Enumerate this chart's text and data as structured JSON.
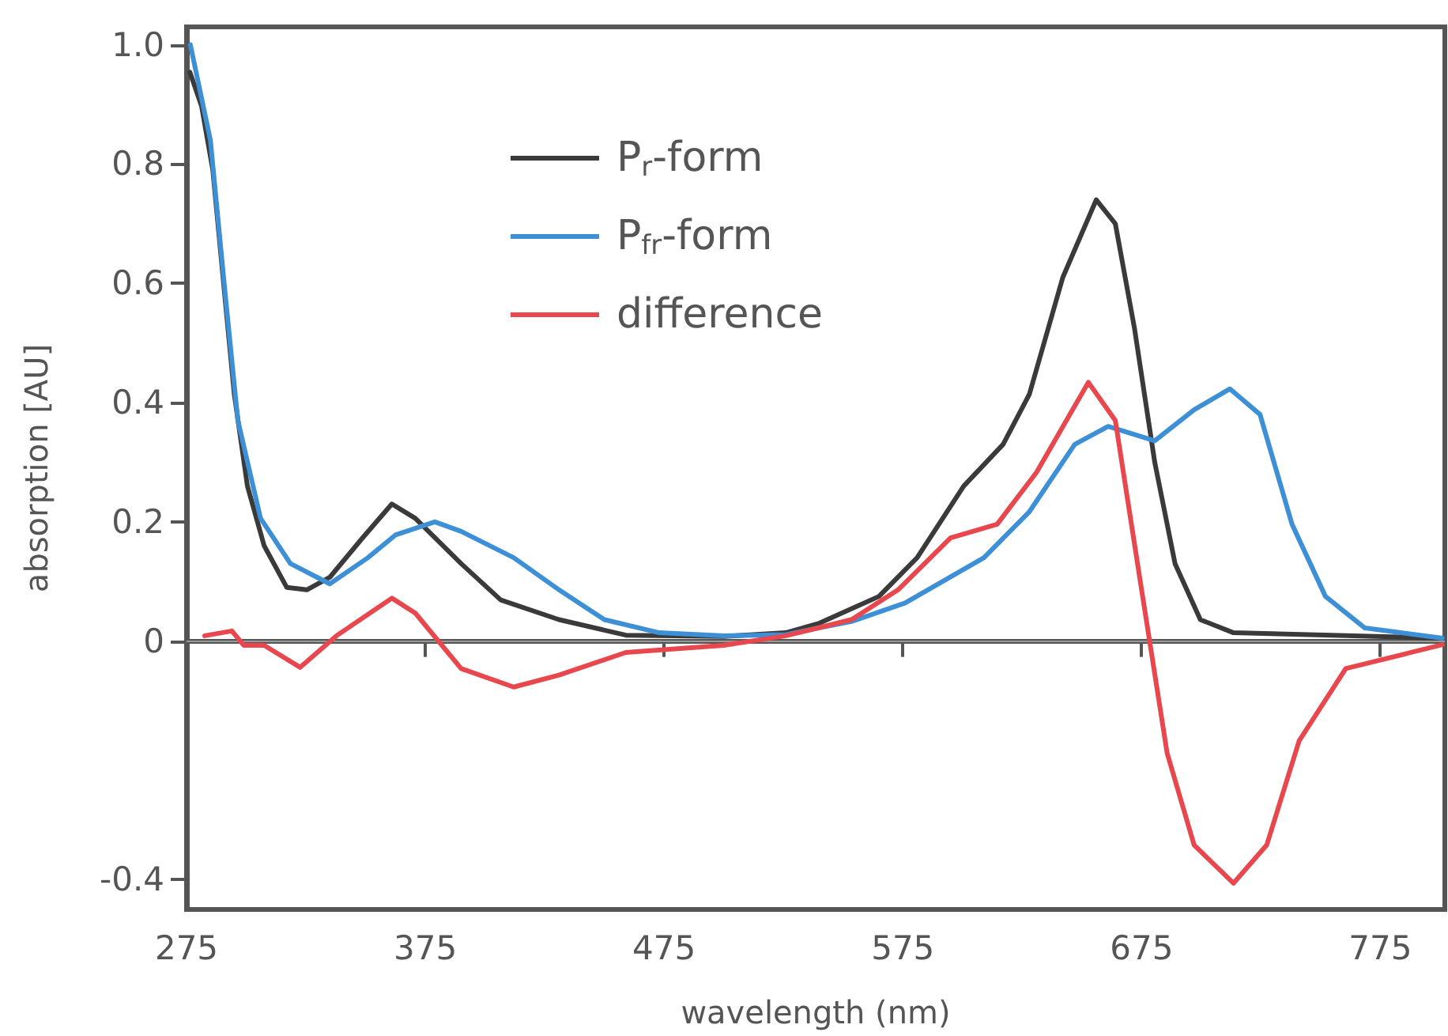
{
  "chart_data": {
    "type": "line",
    "xlabel": "wavelength (nm)",
    "ylabel": "absorption [AU]",
    "xlim": [
      275,
      802
    ],
    "xticks": [
      275,
      375,
      475,
      575,
      675,
      775
    ],
    "ylim": [
      -0.45,
      1.03
    ],
    "yticks": [
      {
        "value": 1,
        "label": "1.0"
      },
      0.8,
      0.6,
      0.4,
      0.2,
      0,
      -0.4
    ],
    "grid": false,
    "legend": "top left",
    "marker": "none",
    "line_style": "solid",
    "ref_lines": [
      {
        "axis": "y",
        "value": 0,
        "label": null,
        "color": "#9a9a9a"
      }
    ],
    "series": [
      {
        "name": "P$_{r}$-form",
        "color": "#3a3a3a",
        "x": [
          276.4,
          281.3,
          286,
          291,
          295,
          300.5,
          307.5,
          317,
          325.4,
          335,
          348.7,
          361,
          370.8,
          390,
          406.6,
          431,
          459,
          500,
          526,
          540,
          565,
          581,
          600.5,
          617,
          628,
          642,
          656,
          664,
          672,
          680.5,
          689,
          699.6,
          713.5,
          801
        ],
        "values": [
          0.954,
          0.897,
          0.79,
          0.58,
          0.414,
          0.26,
          0.16,
          0.09,
          0.086,
          0.107,
          0.173,
          0.23,
          0.206,
          0.13,
          0.069,
          0.036,
          0.01,
          0.008,
          0.014,
          0.03,
          0.075,
          0.14,
          0.26,
          0.33,
          0.414,
          0.61,
          0.74,
          0.7,
          0.525,
          0.3,
          0.13,
          0.036,
          0.014,
          0.005
        ]
      },
      {
        "name": "P$_{fr}$-form",
        "color": "#3d8fd6",
        "x": [
          276.6,
          285,
          291,
          296.5,
          306,
          318.5,
          335,
          351,
          362.5,
          379,
          390,
          412,
          431,
          450,
          473,
          500,
          526,
          553.5,
          576,
          609,
          628,
          647,
          661,
          680.5,
          697,
          712,
          724.6,
          738,
          752,
          768.5,
          801
        ],
        "values": [
          1.0,
          0.84,
          0.59,
          0.37,
          0.206,
          0.13,
          0.096,
          0.14,
          0.178,
          0.2,
          0.184,
          0.14,
          0.086,
          0.036,
          0.014,
          0.009,
          0.011,
          0.033,
          0.064,
          0.14,
          0.217,
          0.33,
          0.36,
          0.336,
          0.388,
          0.423,
          0.38,
          0.196,
          0.075,
          0.022,
          0.005
        ]
      },
      {
        "name": "difference",
        "color": "#e8474d",
        "x": [
          282.6,
          294,
          299,
          307.5,
          322.6,
          337.8,
          361,
          370.8,
          390,
          412,
          431,
          459,
          500,
          526,
          553.5,
          573,
          595,
          614.5,
          631,
          652.7,
          664,
          675,
          685.7,
          697,
          713.5,
          727.4,
          741,
          760.5,
          801
        ],
        "values": [
          0.009,
          0.017,
          -0.007,
          -0.007,
          -0.044,
          0.009,
          0.072,
          0.047,
          -0.046,
          -0.077,
          -0.057,
          -0.019,
          -0.007,
          0.009,
          0.036,
          0.086,
          0.173,
          0.196,
          0.283,
          0.434,
          0.37,
          0.086,
          -0.188,
          -0.342,
          -0.406,
          -0.342,
          -0.167,
          -0.046,
          -0.006
        ]
      }
    ]
  }
}
